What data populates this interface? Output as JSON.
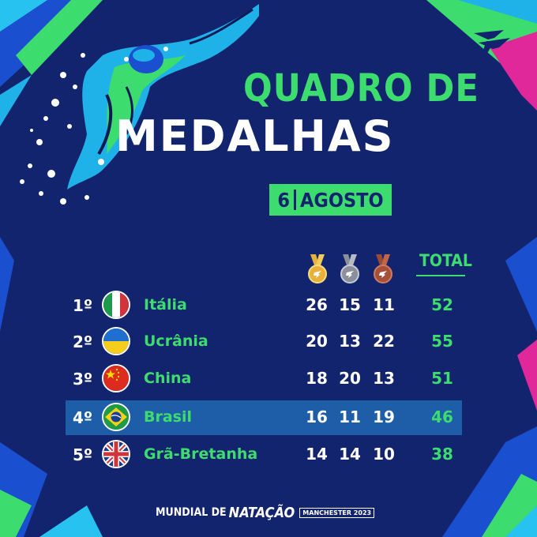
{
  "title_line1": "QUADRO DE",
  "title_line2": "MEDALHAS",
  "date": {
    "day": "6",
    "month": "AGOSTO"
  },
  "header": {
    "total": "TOTAL",
    "gold_icon": "gold-medal-icon",
    "silver_icon": "silver-medal-icon",
    "bronze_icon": "bronze-medal-icon"
  },
  "rows": [
    {
      "rank": "1º",
      "country": "Itália",
      "flag": "italy-flag-icon",
      "gold": "26",
      "silver": "15",
      "bronze": "11",
      "total": "52"
    },
    {
      "rank": "2º",
      "country": "Ucrânia",
      "flag": "ukraine-flag-icon",
      "gold": "20",
      "silver": "13",
      "bronze": "22",
      "total": "55"
    },
    {
      "rank": "3º",
      "country": "China",
      "flag": "china-flag-icon",
      "gold": "18",
      "silver": "20",
      "bronze": "13",
      "total": "51"
    },
    {
      "rank": "4º",
      "country": "Brasil",
      "flag": "brazil-flag-icon",
      "gold": "16",
      "silver": "11",
      "bronze": "19",
      "total": "46",
      "highlighted": true
    },
    {
      "rank": "5º",
      "country": "Grã-Bretanha",
      "flag": "uk-flag-icon",
      "gold": "14",
      "silver": "14",
      "bronze": "10",
      "total": "38"
    }
  ],
  "footer": {
    "part1": "MUNDIAL DE",
    "part2": "NATAÇÃO",
    "part3": "MANCHESTER 2023"
  },
  "colors": {
    "background": "#13246f",
    "accent_green": "#3ddc6e",
    "highlight_row": "#1e5ea8",
    "magenta": "#e0289b",
    "cyan": "#1fb2e8"
  }
}
